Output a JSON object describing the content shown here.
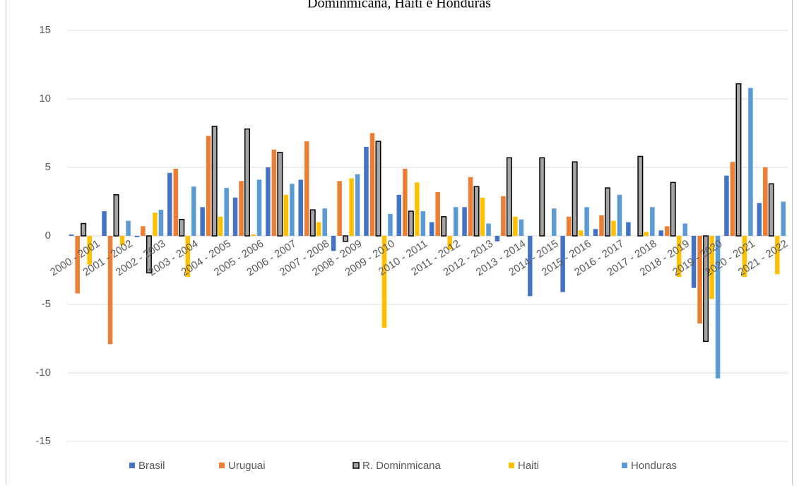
{
  "chart_data": {
    "type": "bar",
    "title": "Dominmicana, Haiti e Honduras",
    "categories": [
      "2000 - 2001",
      "2001 - 2002",
      "2002 - 2003",
      "2003 - 2004",
      "2004 - 2005",
      "2005 - 2006",
      "2006 - 2007",
      "2007 - 2008",
      "2008 - 2009",
      "2009 - 2010",
      "2010 - 2011",
      "2011 - 2012",
      "2012 - 2013",
      "2013 - 2014",
      "2014 - 2015",
      "2015 - 2016",
      "2016 - 2017",
      "2017 - 2018",
      "2018 - 2019",
      "2019 - 2020",
      "2020 - 2021",
      "2021 - 2022"
    ],
    "series": [
      {
        "name": "Brasil",
        "color": "#4472c4",
        "values": [
          0.1,
          1.8,
          -0.1,
          4.6,
          2.1,
          2.8,
          5.0,
          4.1,
          -1.1,
          6.5,
          3.0,
          1.0,
          2.1,
          -0.4,
          -4.4,
          -4.1,
          0.5,
          1.0,
          0.4,
          -3.8,
          4.4,
          2.4
        ]
      },
      {
        "name": "Uruguai",
        "color": "#ed7d31",
        "values": [
          -4.2,
          -7.9,
          0.7,
          4.9,
          7.3,
          4.0,
          6.3,
          6.9,
          4.0,
          7.5,
          4.9,
          3.2,
          4.3,
          2.9,
          0,
          1.4,
          1.5,
          0,
          0.7,
          -6.4,
          5.4,
          5.0
        ]
      },
      {
        "name": "R. Dominmicana",
        "color": "#a5a5a5",
        "edgecolor": "#000000",
        "values": [
          0.9,
          3.0,
          -2.7,
          1.2,
          8.0,
          7.8,
          6.1,
          1.9,
          -0.4,
          6.9,
          1.8,
          1.4,
          3.6,
          5.7,
          5.7,
          5.4,
          3.5,
          5.8,
          3.9,
          -7.7,
          11.1,
          3.8
        ]
      },
      {
        "name": "Haiti",
        "color": "#ffc000",
        "values": [
          -2.1,
          -0.7,
          1.7,
          -3.0,
          1.4,
          0.1,
          3.0,
          1.0,
          4.2,
          -6.7,
          3.9,
          -1.0,
          2.8,
          1.4,
          0,
          0.4,
          1.1,
          0.3,
          -3.0,
          -4.6,
          -3.0,
          -2.8
        ]
      },
      {
        "name": "Honduras",
        "color": "#5b9bd5",
        "values": [
          0,
          1.1,
          1.9,
          3.6,
          3.5,
          4.1,
          3.8,
          2.0,
          4.5,
          1.6,
          1.8,
          2.1,
          0.9,
          1.2,
          2.0,
          2.1,
          3.0,
          2.1,
          0.9,
          -10.4,
          10.8,
          2.5
        ]
      }
    ],
    "ylim": [
      -17,
      15.5
    ],
    "yticks": [
      -15,
      -10,
      -5,
      0,
      5,
      10,
      15
    ],
    "grid": true,
    "legend": "bottom"
  }
}
